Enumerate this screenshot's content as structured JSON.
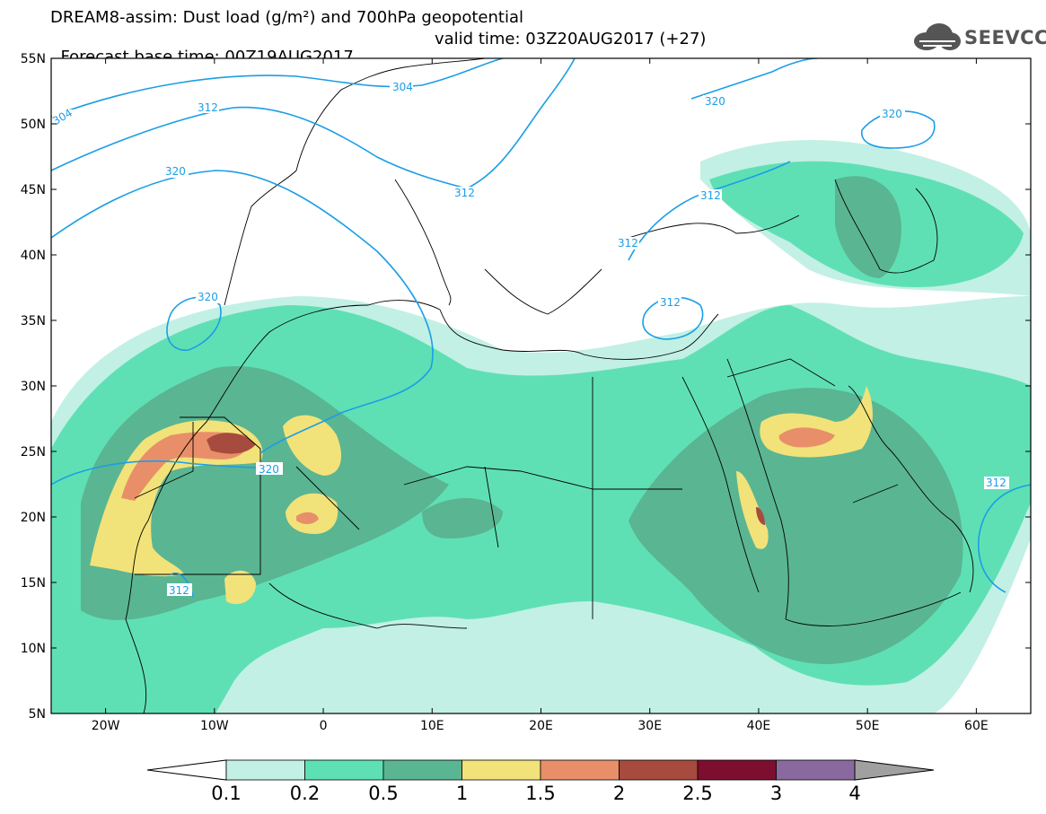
{
  "title": {
    "line1": "DREAM8-assim: Dust load (g/m²) and 700hPa geopotential",
    "line2_base": "Forecast base time: 00Z19AUG2017",
    "line2_valid": "valid time: 03Z20AUG2017 (+27)"
  },
  "logo": {
    "text": "SEEVCCC",
    "icon": "cloud-logo-icon"
  },
  "map": {
    "lon_range": [
      -25,
      65
    ],
    "lat_range": [
      5,
      55
    ],
    "lat_ticks": [
      "55N",
      "50N",
      "45N",
      "40N",
      "35N",
      "30N",
      "25N",
      "20N",
      "15N",
      "10N",
      "5N"
    ],
    "lon_ticks": [
      "20W",
      "10W",
      "0",
      "10E",
      "20E",
      "30E",
      "40E",
      "50E",
      "60E"
    ],
    "contour_labels": [
      "304",
      "304",
      "312",
      "312",
      "312",
      "312",
      "312",
      "312",
      "312",
      "320",
      "320",
      "320",
      "320",
      "320"
    ]
  },
  "colorbar": {
    "labels": [
      "0.1",
      "0.2",
      "0.5",
      "1",
      "1.5",
      "2",
      "2.5",
      "3",
      "4"
    ],
    "colors": [
      "#c2f0e4",
      "#5fe0b4",
      "#5ab592",
      "#f2e27a",
      "#e88f6a",
      "#a74b3e",
      "#7e0e30",
      "#8a6a9e",
      "#a0a0a0"
    ]
  },
  "dust_colors": {
    "light": "#c2f0e4",
    "medium": "#5fe0b4",
    "dark": "#5ab592",
    "yellow": "#f2e27a",
    "orange": "#e88f6a",
    "brown": "#a74b3e",
    "contour": "#1b9ee6"
  }
}
